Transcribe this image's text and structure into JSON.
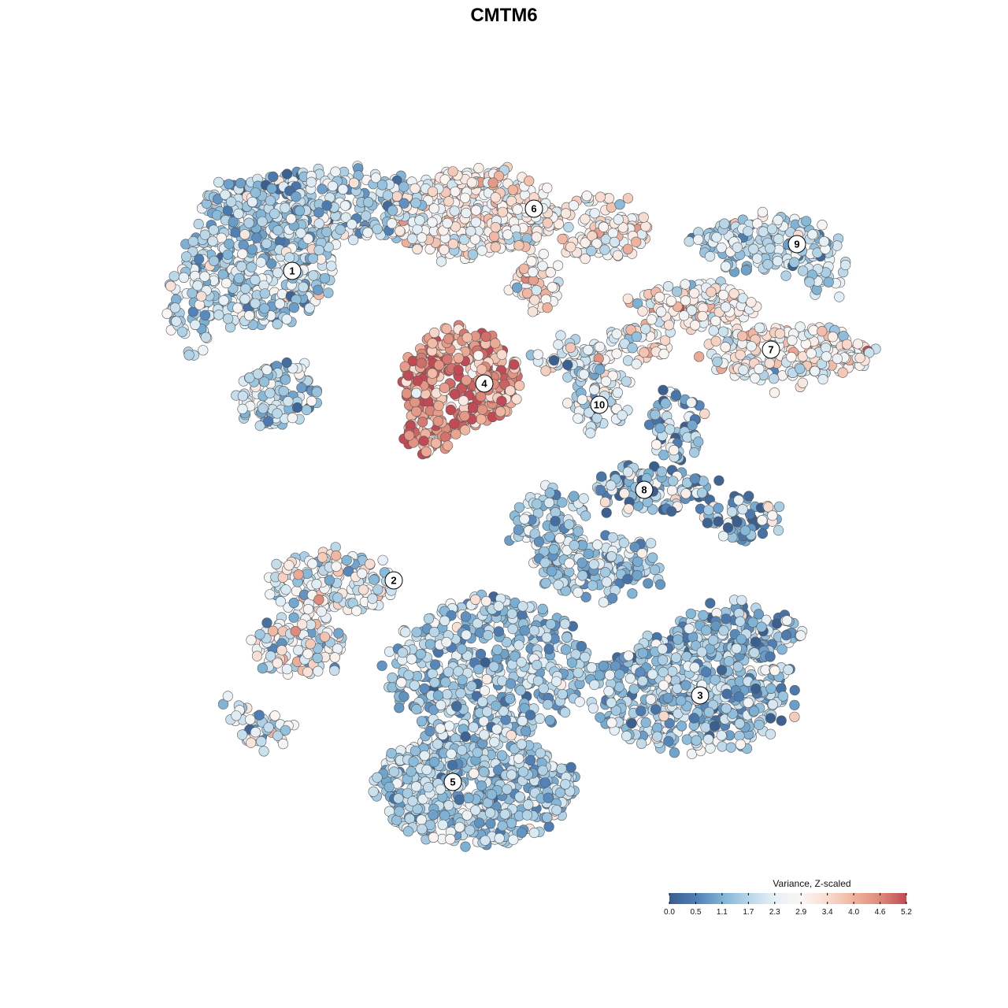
{
  "chart_data": {
    "type": "scatter",
    "title": "CMTM6",
    "xlabel": "",
    "ylabel": "",
    "grid": false,
    "legend_position": "bottom-right",
    "color_scale": {
      "title": "Variance, Z-scaled",
      "range": [
        0.0,
        5.2
      ],
      "ticks": [
        "0.0",
        "0.5",
        "1.1",
        "1.7",
        "2.3",
        "2.9",
        "3.4",
        "4.0",
        "4.6",
        "5.2"
      ],
      "colors": [
        "#3b5f8e",
        "#4f7fb5",
        "#7eb3d6",
        "#b7d6e8",
        "#e6f0f6",
        "#fbf6f4",
        "#f8dcd0",
        "#f0b39d",
        "#de8a7a",
        "#c14a55"
      ]
    },
    "clusters": [
      {
        "label": "1",
        "mean_value": 1.8,
        "spread": 0.75
      },
      {
        "label": "2",
        "mean_value": 2.3,
        "spread": 0.9
      },
      {
        "label": "3",
        "mean_value": 1.6,
        "spread": 0.7
      },
      {
        "label": "4",
        "mean_value": 4.4,
        "spread": 0.7
      },
      {
        "label": "5",
        "mean_value": 1.6,
        "spread": 0.6
      },
      {
        "label": "6",
        "mean_value": 2.9,
        "spread": 0.7
      },
      {
        "label": "7",
        "mean_value": 2.8,
        "spread": 0.8
      },
      {
        "label": "8",
        "mean_value": 1.4,
        "spread": 1.0
      },
      {
        "label": "9",
        "mean_value": 1.8,
        "spread": 0.6
      },
      {
        "label": "10",
        "mean_value": 2.2,
        "spread": 0.8
      }
    ]
  }
}
